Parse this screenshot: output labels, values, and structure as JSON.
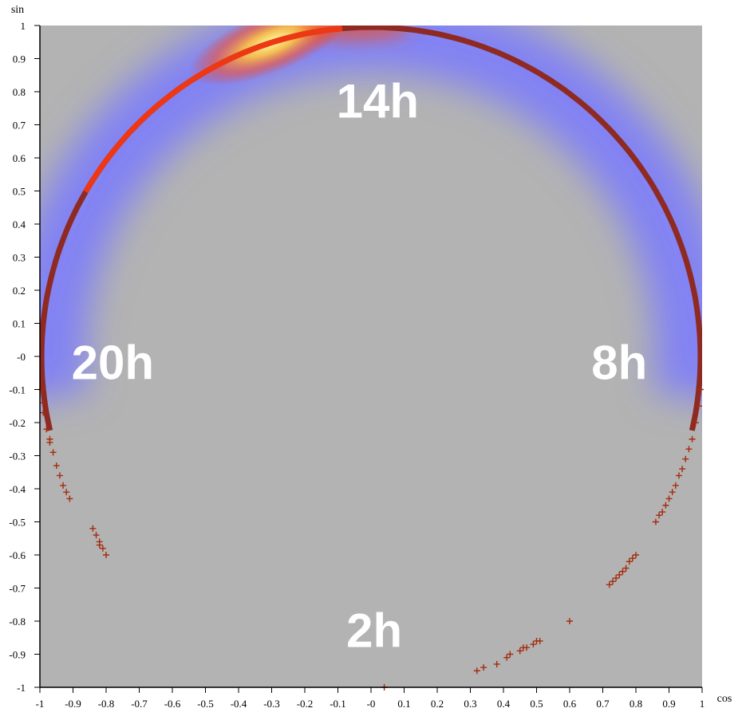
{
  "chart_data": {
    "type": "scatter",
    "xlabel": "cos",
    "ylabel": "sin",
    "xlim": [
      -1,
      1
    ],
    "ylim": [
      -1,
      1
    ],
    "x_ticks": [
      "-1",
      "-0.9",
      "-0.8",
      "-0.7",
      "-0.6",
      "-0.5",
      "-0.4",
      "-0.3",
      "-0.2",
      "-0.1",
      "-0",
      "0.1",
      "0.2",
      "0.3",
      "0.4",
      "0.5",
      "0.6",
      "0.7",
      "0.8",
      "0.9",
      "1"
    ],
    "y_ticks": [
      "1",
      "0.9",
      "0.8",
      "0.7",
      "0.6",
      "0.5",
      "0.4",
      "0.3",
      "0.2",
      "0.1",
      "-0",
      "-0.1",
      "-0.2",
      "-0.3",
      "-0.4",
      "-0.5",
      "-0.6",
      "-0.7",
      "-0.8",
      "-0.9",
      "-1"
    ],
    "grid": false,
    "background": "density heatmap (blue low, yellow high)",
    "annotations": [
      {
        "text": "14h",
        "x": 0.02,
        "y": 0.77
      },
      {
        "text": "8h",
        "x": 0.75,
        "y": -0.02
      },
      {
        "text": "20h",
        "x": -0.78,
        "y": -0.02
      },
      {
        "text": "2h",
        "x": 0.01,
        "y": -0.83
      }
    ],
    "density_peak": {
      "x": -0.3,
      "y": 0.95
    },
    "dense_arc": {
      "from_deg": -13,
      "to_deg": 193
    },
    "points": [
      [
        0.04,
        -1.0
      ],
      [
        0.32,
        -0.95
      ],
      [
        0.34,
        -0.94
      ],
      [
        0.38,
        -0.93
      ],
      [
        0.41,
        -0.91
      ],
      [
        0.42,
        -0.9
      ],
      [
        0.45,
        -0.89
      ],
      [
        0.46,
        -0.88
      ],
      [
        0.47,
        -0.88
      ],
      [
        0.49,
        -0.87
      ],
      [
        0.5,
        -0.86
      ],
      [
        0.51,
        -0.86
      ],
      [
        0.6,
        -0.8
      ],
      [
        0.72,
        -0.69
      ],
      [
        0.73,
        -0.68
      ],
      [
        0.74,
        -0.67
      ],
      [
        0.75,
        -0.66
      ],
      [
        0.76,
        -0.65
      ],
      [
        0.77,
        -0.64
      ],
      [
        0.78,
        -0.62
      ],
      [
        0.79,
        -0.61
      ],
      [
        0.8,
        -0.6
      ],
      [
        0.86,
        -0.5
      ],
      [
        0.87,
        -0.48
      ],
      [
        0.88,
        -0.47
      ],
      [
        0.89,
        -0.45
      ],
      [
        0.9,
        -0.43
      ],
      [
        0.91,
        -0.41
      ],
      [
        0.92,
        -0.39
      ],
      [
        0.93,
        -0.36
      ],
      [
        0.94,
        -0.34
      ],
      [
        0.95,
        -0.31
      ],
      [
        0.96,
        -0.28
      ],
      [
        0.97,
        -0.25
      ],
      [
        0.98,
        -0.2
      ],
      [
        0.99,
        -0.15
      ],
      [
        0.995,
        -0.1
      ],
      [
        -0.91,
        -0.43
      ],
      [
        -0.92,
        -0.41
      ],
      [
        -0.93,
        -0.39
      ],
      [
        -0.94,
        -0.36
      ],
      [
        -0.95,
        -0.33
      ],
      [
        -0.96,
        -0.29
      ],
      [
        -0.97,
        -0.26
      ],
      [
        -0.97,
        -0.25
      ],
      [
        -0.98,
        -0.22
      ],
      [
        -0.99,
        -0.17
      ],
      [
        -0.99,
        -0.14
      ],
      [
        -0.995,
        -0.1
      ],
      [
        -0.84,
        -0.52
      ],
      [
        -0.83,
        -0.54
      ],
      [
        -0.82,
        -0.56
      ],
      [
        -0.81,
        -0.58
      ],
      [
        -0.8,
        -0.6
      ],
      [
        -0.82,
        -0.57
      ]
    ],
    "colors": {
      "plot_bg": "#b3b3b3",
      "marker": "#a32b0d",
      "ring_base": "#8e2a22",
      "heat_low": "#7a7aff",
      "heat_mid": "#ff4400",
      "heat_high": "#ffee66"
    }
  }
}
